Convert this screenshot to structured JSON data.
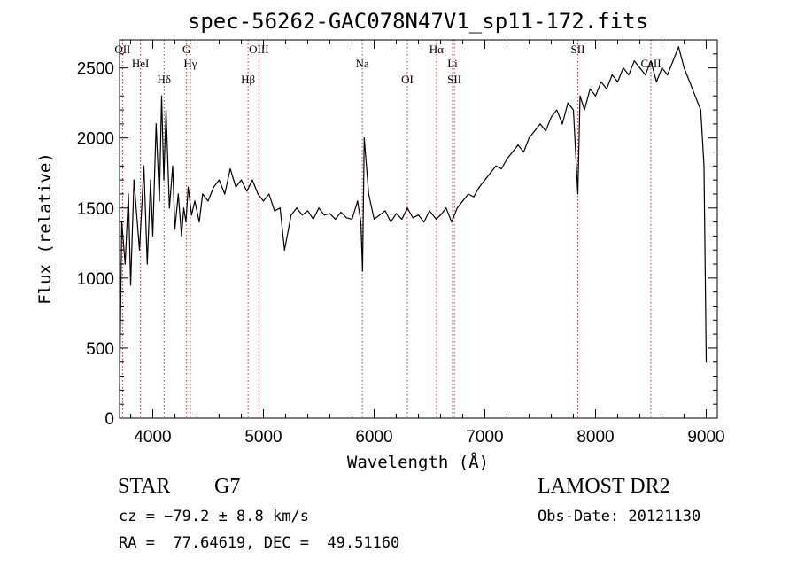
{
  "chart_data": {
    "type": "line",
    "title": "spec-56262-GAC078N47V1_sp11-172.fits",
    "xlabel": "Wavelength (Å)",
    "ylabel": "Flux (relative)",
    "xlim": [
      3700,
      9100
    ],
    "ylim": [
      0,
      2700
    ],
    "xticks": [
      "4000",
      "5000",
      "6000",
      "7000",
      "8000",
      "9000"
    ],
    "yticks": [
      "0",
      "500",
      "1000",
      "1500",
      "2000",
      "2500"
    ],
    "spectral_lines": [
      {
        "label": "OII",
        "wavelength": 3727
      },
      {
        "label": "HeI",
        "wavelength": 3889
      },
      {
        "label": "Hδ",
        "wavelength": 4102
      },
      {
        "label": "G",
        "wavelength": 4305
      },
      {
        "label": "Hγ",
        "wavelength": 4340
      },
      {
        "label": "Hβ",
        "wavelength": 4861
      },
      {
        "label": "OIII",
        "wavelength": 4959
      },
      {
        "label": "Na",
        "wavelength": 5893
      },
      {
        "label": "OI",
        "wavelength": 6300
      },
      {
        "label": "Hα",
        "wavelength": 6563
      },
      {
        "label": "Li",
        "wavelength": 6708
      },
      {
        "label": "SII",
        "wavelength": 6725
      },
      {
        "label": "SII",
        "wavelength": 7840
      },
      {
        "label": "CaII",
        "wavelength": 8500
      }
    ],
    "series": [
      {
        "x": [
          3700,
          3720,
          3750,
          3780,
          3800,
          3830,
          3860,
          3880,
          3900,
          3920,
          3950,
          3980,
          4000,
          4030,
          4060,
          4080,
          4100,
          4120,
          4150,
          4180,
          4200,
          4230,
          4260,
          4280,
          4300,
          4320,
          4350,
          4380,
          4420,
          4450,
          4500,
          4550,
          4600,
          4650,
          4700,
          4750,
          4800,
          4850,
          4900,
          4950,
          5000,
          5050,
          5100,
          5150,
          5190,
          5250,
          5300,
          5350,
          5400,
          5450,
          5500,
          5550,
          5600,
          5650,
          5700,
          5750,
          5800,
          5850,
          5880,
          5895,
          5910,
          5950,
          6000,
          6050,
          6100,
          6150,
          6200,
          6250,
          6300,
          6350,
          6400,
          6450,
          6500,
          6560,
          6600,
          6650,
          6700,
          6750,
          6800,
          6850,
          6900,
          6950,
          7000,
          7050,
          7100,
          7150,
          7200,
          7250,
          7300,
          7350,
          7400,
          7450,
          7500,
          7550,
          7600,
          7650,
          7700,
          7750,
          7800,
          7840,
          7860,
          7900,
          7950,
          8000,
          8050,
          8100,
          8150,
          8200,
          8250,
          8300,
          8350,
          8400,
          8450,
          8500,
          8550,
          8600,
          8650,
          8700,
          8750,
          8800,
          8850,
          8900,
          8950,
          8980,
          9000
        ],
        "y": [
          200,
          1400,
          1100,
          1600,
          950,
          1700,
          1400,
          1200,
          1500,
          1800,
          1100,
          1700,
          1300,
          2100,
          1550,
          2300,
          1700,
          2200,
          1500,
          1800,
          1350,
          1600,
          1300,
          1500,
          1400,
          1650,
          1450,
          1550,
          1400,
          1600,
          1550,
          1650,
          1700,
          1600,
          1780,
          1650,
          1700,
          1620,
          1700,
          1600,
          1550,
          1600,
          1480,
          1500,
          1200,
          1450,
          1500,
          1450,
          1480,
          1420,
          1500,
          1450,
          1460,
          1420,
          1470,
          1430,
          1420,
          1550,
          1400,
          1050,
          2000,
          1600,
          1420,
          1450,
          1480,
          1400,
          1460,
          1420,
          1500,
          1430,
          1450,
          1400,
          1480,
          1420,
          1450,
          1500,
          1400,
          1500,
          1550,
          1600,
          1580,
          1650,
          1700,
          1750,
          1800,
          1780,
          1850,
          1900,
          1950,
          1900,
          2000,
          2050,
          2100,
          2050,
          2150,
          2200,
          2100,
          2250,
          2200,
          1600,
          2300,
          2200,
          2350,
          2300,
          2400,
          2350,
          2450,
          2400,
          2500,
          2450,
          2550,
          2500,
          2450,
          2550,
          2400,
          2500,
          2450,
          2550,
          2650,
          2500,
          2400,
          2300,
          2200,
          1800,
          400
        ]
      }
    ]
  },
  "info": {
    "object_class": "STAR",
    "subclass": "G7",
    "survey": "LAMOST DR2",
    "redshift_line": "cz = −79.2 ± 8.8 km/s",
    "obs_date_line": "Obs-Date: 20121130",
    "coords_line": "RA =  77.64619, DEC =  49.51160"
  }
}
